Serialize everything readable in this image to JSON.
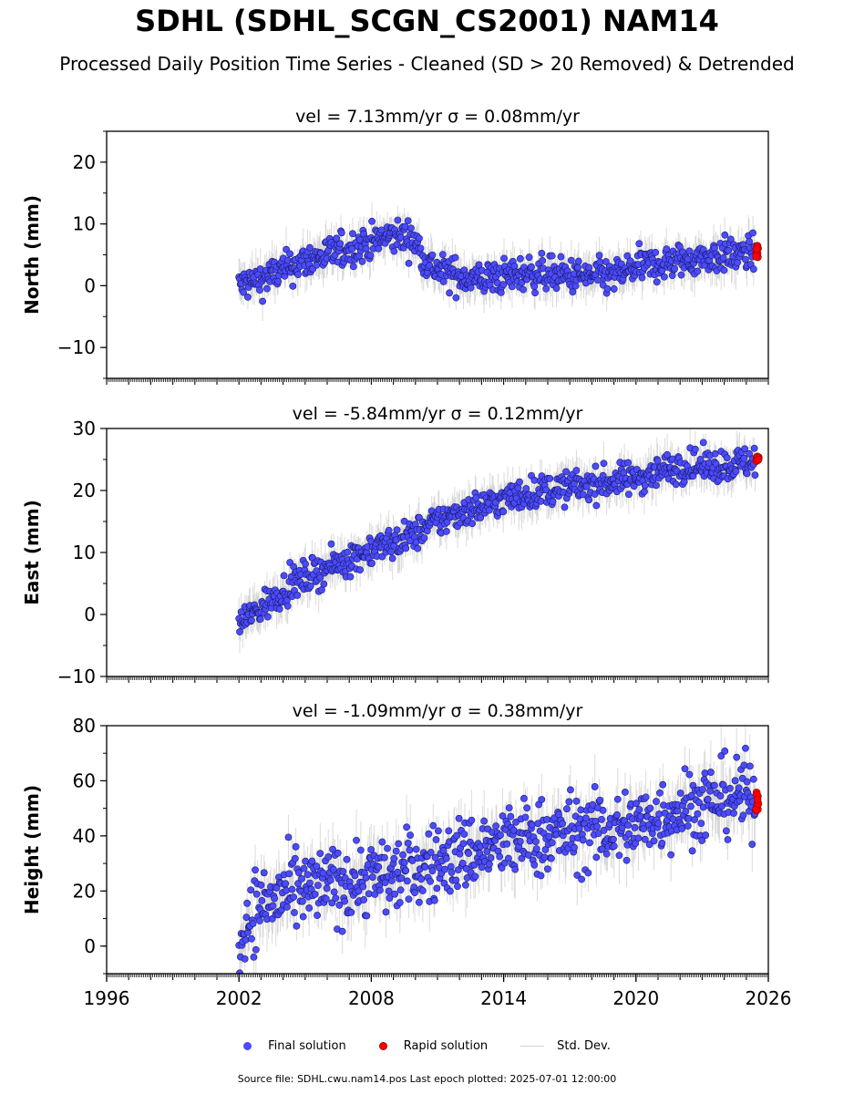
{
  "title": "SDHL (SDHL_SCGN_CS2001) NAM14",
  "subtitle": "Processed Daily Position Time Series - Cleaned (SD > 20 Removed) & Detrended",
  "legend": {
    "final": "Final solution",
    "rapid": "Rapid solution",
    "sd": "Std. Dev."
  },
  "footer": "Source file: SDHL.cwu.nam14.pos  Last epoch plotted: 2025-07-01 12:00:00",
  "colors": {
    "final": "#4b4bff",
    "rapid": "#ff0000",
    "sd": "#bdbdbd"
  },
  "chart_data": [
    {
      "type": "scatter",
      "title": "vel = 7.13mm/yr   σ = 0.08mm/yr",
      "ylabel": "North (mm)",
      "xlim": [
        1996,
        2026
      ],
      "ylim": [
        -15,
        25
      ],
      "xticks": [
        "1996",
        "2002",
        "2008",
        "2014",
        "2020",
        "2026"
      ],
      "yticks": [
        -10,
        0,
        10,
        20
      ],
      "ytick_labels": [
        "−10",
        "0",
        "10",
        "20"
      ],
      "series": [
        {
          "name": "Final solution",
          "x": [
            2002.0,
            2003.0,
            2004.0,
            2005.0,
            2006.0,
            2007.0,
            2008.0,
            2009.0,
            2009.5,
            2010.0,
            2010.5,
            2011.0,
            2012.0,
            2013.0,
            2014.0,
            2015.0,
            2016.0,
            2017.0,
            2018.0,
            2019.0,
            2020.0,
            2021.0,
            2022.0,
            2023.0,
            2024.0,
            2025.0,
            2025.4
          ],
          "y": [
            0,
            1,
            2.5,
            4,
            5,
            6,
            7,
            8,
            8,
            7,
            4,
            2.5,
            1.5,
            1,
            1.5,
            2,
            2,
            1.5,
            1.5,
            1.5,
            3,
            3.5,
            4,
            4.5,
            5,
            5,
            5.5
          ]
        },
        {
          "name": "Rapid solution",
          "x": [
            2025.5
          ],
          "y": [
            5.5
          ]
        }
      ],
      "spread": 1.4,
      "sd_halfwidth": 2.5
    },
    {
      "type": "scatter",
      "title": "vel = -5.84mm/yr   σ = 0.12mm/yr",
      "ylabel": "East (mm)",
      "xlim": [
        1996,
        2026
      ],
      "ylim": [
        -10,
        30
      ],
      "xticks": [
        "1996",
        "2002",
        "2008",
        "2014",
        "2020",
        "2026"
      ],
      "yticks": [
        -10,
        0,
        10,
        20,
        30
      ],
      "ytick_labels": [
        "−10",
        "0",
        "10",
        "20",
        "30"
      ],
      "series": [
        {
          "name": "Final solution",
          "x": [
            2002.0,
            2003.0,
            2004.0,
            2005.0,
            2006.0,
            2007.0,
            2008.0,
            2009.0,
            2010.0,
            2011.0,
            2012.0,
            2013.0,
            2014.0,
            2015.0,
            2016.0,
            2017.0,
            2018.0,
            2019.0,
            2020.0,
            2021.0,
            2022.0,
            2023.0,
            2024.0,
            2025.0,
            2025.4
          ],
          "y": [
            -1.5,
            1,
            4,
            6,
            7.5,
            9,
            10.5,
            11.5,
            13,
            15,
            16.5,
            17.5,
            18.5,
            19.5,
            20,
            20.5,
            21,
            21.5,
            22,
            23,
            24,
            24,
            24,
            24.5,
            25
          ]
        },
        {
          "name": "Rapid solution",
          "x": [
            2025.5
          ],
          "y": [
            25
          ]
        }
      ],
      "spread": 1.3,
      "sd_halfwidth": 2.5
    },
    {
      "type": "scatter",
      "title": "vel = -1.09mm/yr   σ = 0.38mm/yr",
      "ylabel": "Height (mm)",
      "xlim": [
        1996,
        2026
      ],
      "ylim": [
        -10,
        80
      ],
      "xticks": [
        "1996",
        "2002",
        "2008",
        "2014",
        "2020",
        "2026"
      ],
      "yticks": [
        0,
        20,
        40,
        60,
        80
      ],
      "ytick_labels": [
        "0",
        "20",
        "40",
        "60",
        "80"
      ],
      "series": [
        {
          "name": "Final solution",
          "x": [
            2002.0,
            2002.5,
            2003.0,
            2004.0,
            2005.0,
            2006.0,
            2007.0,
            2008.0,
            2009.0,
            2010.0,
            2011.0,
            2012.0,
            2013.0,
            2014.0,
            2015.0,
            2016.0,
            2017.0,
            2018.0,
            2019.0,
            2020.0,
            2021.0,
            2022.0,
            2023.0,
            2024.0,
            2025.0,
            2025.4
          ],
          "y": [
            0,
            12,
            15,
            18,
            20,
            22,
            23,
            25,
            26,
            28,
            30,
            33,
            35,
            37,
            39,
            40,
            41,
            42,
            42,
            44,
            47,
            50,
            52,
            54,
            55,
            53
          ]
        },
        {
          "name": "Rapid solution",
          "x": [
            2025.5
          ],
          "y": [
            53
          ]
        }
      ],
      "spread": 7,
      "sd_halfwidth": 8
    }
  ]
}
